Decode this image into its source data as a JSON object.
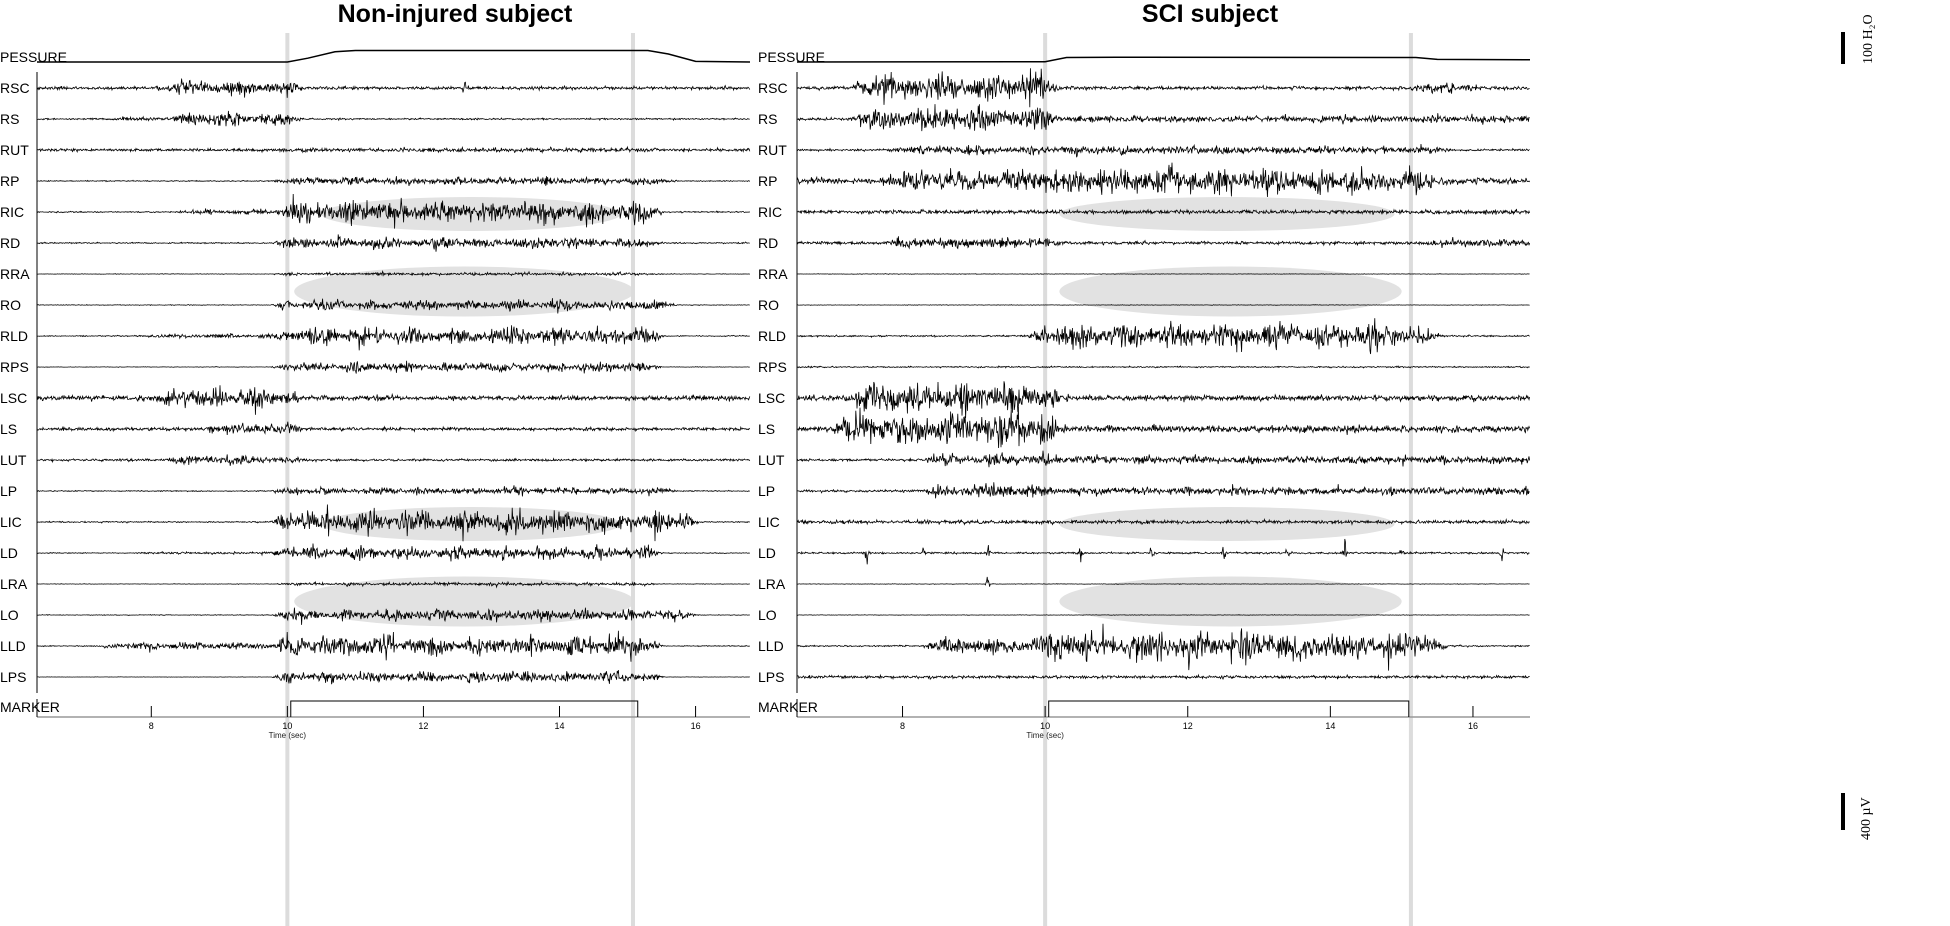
{
  "chart_data": {
    "type": "line",
    "scale_bars": {
      "pressure_label": "100 H₂O",
      "emg_label": "400 µV"
    },
    "x_tick_labels": [
      "8",
      "10",
      "12",
      "14",
      "16"
    ],
    "xlabel": "Time (sec)",
    "pressure_label": "PESSURE",
    "marker_label": "MARKER",
    "channels": [
      "RSC",
      "RS",
      "RUT",
      "RP",
      "RIC",
      "RD",
      "RRA",
      "RO",
      "RLD",
      "RPS",
      "LSC",
      "LS",
      "LUT",
      "LP",
      "LIC",
      "LD",
      "LRA",
      "LO",
      "LLD",
      "LPS"
    ],
    "colors": {
      "trace": "#000000",
      "highlight": "#e2e2e2",
      "event_line": "#dcdcdc"
    },
    "panels": [
      {
        "title": "Non-injured subject",
        "xlim": [
          6.32,
          16.8
        ],
        "event_lines_sec": [
          10.0,
          15.08
        ],
        "marker_on_sec": [
          10.05,
          15.15
        ],
        "pressure_cmH2O": [
          [
            6.32,
            0
          ],
          [
            10.0,
            0
          ],
          [
            10.3,
            12
          ],
          [
            10.7,
            32
          ],
          [
            11.0,
            36
          ],
          [
            15.3,
            36
          ],
          [
            15.6,
            25
          ],
          [
            16.0,
            2
          ],
          [
            16.8,
            0
          ]
        ],
        "highlight_ellipses": [
          {
            "channels": [
              "RIC"
            ],
            "sec": [
              10.5,
              14.9
            ]
          },
          {
            "channels": [
              "RRA",
              "RO"
            ],
            "sec": [
              10.1,
              15.1
            ]
          },
          {
            "channels": [
              "LIC"
            ],
            "sec": [
              10.5,
              14.9
            ]
          },
          {
            "channels": [
              "LRA",
              "LO"
            ],
            "sec": [
              10.1,
              15.1
            ]
          }
        ],
        "emg_envelopes_uV": {
          "RSC": {
            "base": 20,
            "bursts": [
              [
                8.3,
                10.0,
                110
              ]
            ],
            "spikes": [
              12.6
            ]
          },
          "RS": {
            "base": 10,
            "bursts": [
              [
                7.6,
                8.5,
                30
              ],
              [
                8.5,
                10.0,
                100
              ]
            ]
          },
          "RUT": {
            "base": 18,
            "bursts": [
              [
                10.0,
                15.3,
                28
              ]
            ]
          },
          "RP": {
            "base": 6,
            "bursts": [
              [
                10.0,
                15.5,
                55
              ]
            ]
          },
          "RIC": {
            "base": 8,
            "bursts": [
              [
                8.5,
                10.0,
                30
              ],
              [
                10.0,
                15.3,
                170
              ]
            ]
          },
          "RD": {
            "base": 8,
            "bursts": [
              [
                10.0,
                15.3,
                85
              ]
            ]
          },
          "RRA": {
            "base": 3,
            "bursts": [
              [
                10.0,
                15.3,
                22
              ]
            ]
          },
          "RO": {
            "base": 4,
            "bursts": [
              [
                10.0,
                15.5,
                75
              ]
            ]
          },
          "RLD": {
            "base": 6,
            "bursts": [
              [
                8.0,
                10.0,
                30
              ],
              [
                10.0,
                15.3,
                130
              ]
            ]
          },
          "RPS": {
            "base": 3,
            "bursts": [
              [
                10.0,
                15.3,
                70
              ]
            ]
          },
          "LSC": {
            "base": 30,
            "bursts": [
              [
                8.3,
                10.0,
                140
              ]
            ]
          },
          "LS": {
            "base": 20,
            "bursts": [
              [
                9.0,
                10.0,
                80
              ]
            ]
          },
          "LUT": {
            "base": 15,
            "bursts": [
              [
                8.4,
                10.0,
                60
              ]
            ]
          },
          "LP": {
            "base": 6,
            "bursts": [
              [
                10.0,
                15.5,
                55
              ]
            ]
          },
          "LIC": {
            "base": 8,
            "bursts": [
              [
                10.0,
                15.8,
                160
              ]
            ]
          },
          "LD": {
            "base": 5,
            "bursts": [
              [
                8.0,
                10.0,
                20
              ],
              [
                10.0,
                15.3,
                95
              ]
            ]
          },
          "LRA": {
            "base": 3,
            "bursts": [
              [
                10.0,
                15.3,
                25
              ]
            ]
          },
          "LO": {
            "base": 4,
            "bursts": [
              [
                10.0,
                15.8,
                85
              ]
            ]
          },
          "LLD": {
            "base": 6,
            "bursts": [
              [
                7.5,
                10.0,
                55
              ],
              [
                10.0,
                15.3,
                150
              ]
            ]
          },
          "LPS": {
            "base": 2,
            "bursts": [
              [
                10.0,
                15.3,
                85
              ]
            ]
          }
        }
      },
      {
        "title": "SCI subject",
        "xlim": [
          6.52,
          16.8
        ],
        "event_lines_sec": [
          10.0,
          15.13
        ],
        "marker_on_sec": [
          10.05,
          15.1
        ],
        "pressure_cmH2O": [
          [
            6.52,
            0
          ],
          [
            10.0,
            1
          ],
          [
            10.3,
            14
          ],
          [
            11.0,
            15
          ],
          [
            15.2,
            14
          ],
          [
            15.5,
            8
          ],
          [
            16.8,
            7
          ]
        ],
        "highlight_ellipses": [
          {
            "channels": [
              "RIC"
            ],
            "sec": [
              10.2,
              14.9
            ]
          },
          {
            "channels": [
              "RRA",
              "RO"
            ],
            "sec": [
              10.2,
              15.0
            ]
          },
          {
            "channels": [
              "LIC"
            ],
            "sec": [
              10.2,
              14.9
            ]
          },
          {
            "channels": [
              "LRA",
              "LO"
            ],
            "sec": [
              10.2,
              15.0
            ]
          }
        ],
        "emg_envelopes_uV": {
          "RSC": {
            "base": 22,
            "bursts": [
              [
                7.5,
                10.0,
                200
              ],
              [
                15.3,
                15.9,
                70
              ]
            ]
          },
          "RS": {
            "base": 20,
            "bursts": [
              [
                7.5,
                10.0,
                180
              ],
              [
                10.0,
                16.8,
                50
              ]
            ]
          },
          "RUT": {
            "base": 12,
            "bursts": [
              [
                8.0,
                10.0,
                65
              ],
              [
                10.0,
                15.5,
                60
              ]
            ]
          },
          "RP": {
            "base": 40,
            "bursts": [
              [
                8.0,
                10.0,
                150
              ],
              [
                10.0,
                15.3,
                180
              ]
            ]
          },
          "RIC": {
            "base": 25,
            "bursts": []
          },
          "RD": {
            "base": 20,
            "bursts": [
              [
                8.0,
                10.0,
                75
              ],
              [
                15.5,
                16.8,
                50
              ]
            ]
          },
          "RRA": {
            "base": 3,
            "bursts": []
          },
          "RO": {
            "base": 3,
            "bursts": []
          },
          "RLD": {
            "base": 10,
            "bursts": [
              [
                10.0,
                15.3,
                190
              ]
            ]
          },
          "RPS": {
            "base": 8,
            "bursts": []
          },
          "LSC": {
            "base": 35,
            "bursts": [
              [
                7.5,
                10.0,
                230
              ]
            ]
          },
          "LS": {
            "base": 30,
            "bursts": [
              [
                7.2,
                10.0,
                250
              ],
              [
                10.0,
                16.8,
                50
              ]
            ]
          },
          "LUT": {
            "base": 15,
            "bursts": [
              [
                8.5,
                10.0,
                90
              ],
              [
                10.0,
                16.8,
                60
              ]
            ]
          },
          "LP": {
            "base": 15,
            "bursts": [
              [
                8.5,
                10.0,
                115
              ],
              [
                10.0,
                16.8,
                60
              ]
            ]
          },
          "LIC": {
            "base": 22,
            "bursts": []
          },
          "LD": {
            "base": 12,
            "bursts": [],
            "spikes": [
              7.5,
              8.3,
              9.2,
              10.5,
              11.5,
              12.5,
              13.4,
              14.2,
              15.0,
              16.4
            ]
          },
          "LRA": {
            "base": 3,
            "bursts": [],
            "spikes": [
              9.2
            ]
          },
          "LO": {
            "base": 3,
            "bursts": []
          },
          "LLD": {
            "base": 10,
            "bursts": [
              [
                8.5,
                10.0,
                120
              ],
              [
                10.0,
                15.4,
                230
              ]
            ]
          },
          "LPS": {
            "base": 18,
            "bursts": []
          }
        }
      }
    ]
  }
}
